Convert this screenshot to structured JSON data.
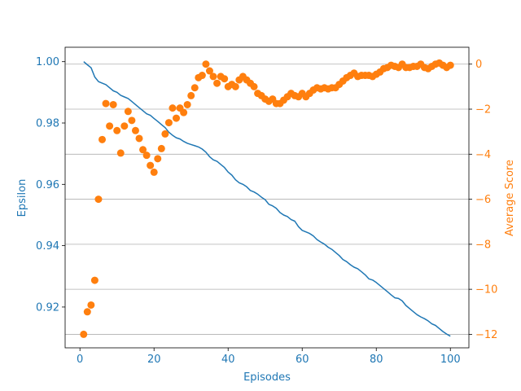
{
  "chart_data": {
    "type": "line",
    "title": "",
    "xlabel": "Episodes",
    "ylabel_left": "Epsilon",
    "ylabel_right": "Average Score",
    "xlim": [
      -4,
      105
    ],
    "ylim_left": [
      0.9067,
      1.0047
    ],
    "ylim_right": [
      -12.6,
      0.75
    ],
    "xticks": [
      0,
      20,
      40,
      60,
      80,
      100
    ],
    "yticks_left": [
      "0.92",
      "0.94",
      "0.96",
      "0.98",
      "1.00"
    ],
    "yticks_left_values": [
      0.92,
      0.94,
      0.96,
      0.98,
      1.0
    ],
    "yticks_right": [
      "−12",
      "−10",
      "−8",
      "−6",
      "−4",
      "−2",
      "0"
    ],
    "yticks_right_values": [
      -12,
      -10,
      -8,
      -6,
      -4,
      -2,
      0
    ],
    "grid": "horizontal, right axis",
    "colors": {
      "epsilon": "#1f77b4",
      "score": "#ff7f0e",
      "grid": "#b0b0b0",
      "axis": "#000000"
    },
    "series": [
      {
        "axis": "left",
        "style": "line",
        "x": [
          1,
          2,
          3,
          4,
          5,
          6,
          7,
          8,
          9,
          10,
          11,
          12,
          13,
          14,
          15,
          16,
          17,
          18,
          19,
          20,
          21,
          22,
          23,
          24,
          25,
          26,
          27,
          28,
          29,
          30,
          31,
          32,
          33,
          34,
          35,
          36,
          37,
          38,
          39,
          40,
          41,
          42,
          43,
          44,
          45,
          46,
          47,
          48,
          49,
          50,
          51,
          52,
          53,
          54,
          55,
          56,
          57,
          58,
          59,
          60,
          61,
          62,
          63,
          64,
          65,
          66,
          67,
          68,
          69,
          70,
          71,
          72,
          73,
          74,
          75,
          76,
          77,
          78,
          79,
          80,
          81,
          82,
          83,
          84,
          85,
          86,
          87,
          88,
          89,
          90,
          91,
          92,
          93,
          94,
          95,
          96,
          97,
          98,
          99,
          100
        ],
        "values": [
          1.0,
          0.999,
          0.998,
          0.995,
          0.9935,
          0.993,
          0.9925,
          0.9915,
          0.9905,
          0.99,
          0.989,
          0.9885,
          0.988,
          0.987,
          0.986,
          0.985,
          0.984,
          0.983,
          0.9825,
          0.9815,
          0.9805,
          0.9795,
          0.9785,
          0.977,
          0.976,
          0.9752,
          0.9748,
          0.974,
          0.9734,
          0.973,
          0.9726,
          0.9722,
          0.9715,
          0.9705,
          0.969,
          0.968,
          0.9675,
          0.9665,
          0.9655,
          0.964,
          0.963,
          0.9615,
          0.9605,
          0.96,
          0.9592,
          0.958,
          0.9575,
          0.9568,
          0.9558,
          0.955,
          0.9535,
          0.953,
          0.9522,
          0.9508,
          0.95,
          0.9495,
          0.9485,
          0.948,
          0.9462,
          0.945,
          0.9445,
          0.944,
          0.9432,
          0.942,
          0.9412,
          0.9405,
          0.9395,
          0.9388,
          0.9378,
          0.9368,
          0.9355,
          0.9348,
          0.9338,
          0.933,
          0.9325,
          0.9315,
          0.9305,
          0.9292,
          0.9288,
          0.928,
          0.927,
          0.926,
          0.925,
          0.924,
          0.923,
          0.9228,
          0.922,
          0.9205,
          0.9195,
          0.9185,
          0.9175,
          0.9168,
          0.9162,
          0.9155,
          0.9145,
          0.914,
          0.913,
          0.912,
          0.9112,
          0.9105
        ]
      },
      {
        "axis": "right",
        "style": "scatter",
        "x": [
          1,
          2,
          3,
          4,
          5,
          6,
          7,
          8,
          9,
          10,
          11,
          12,
          13,
          14,
          15,
          16,
          17,
          18,
          19,
          20,
          21,
          22,
          23,
          24,
          25,
          26,
          27,
          28,
          29,
          30,
          31,
          32,
          33,
          34,
          35,
          36,
          37,
          38,
          39,
          40,
          41,
          42,
          43,
          44,
          45,
          46,
          47,
          48,
          49,
          50,
          51,
          52,
          53,
          54,
          55,
          56,
          57,
          58,
          59,
          60,
          61,
          62,
          63,
          64,
          65,
          66,
          67,
          68,
          69,
          70,
          71,
          72,
          73,
          74,
          75,
          76,
          77,
          78,
          79,
          80,
          81,
          82,
          83,
          84,
          85,
          86,
          87,
          88,
          89,
          90,
          91,
          92,
          93,
          94,
          95,
          96,
          97,
          98,
          99,
          100
        ],
        "values": [
          -12.0,
          -11.0,
          -10.7,
          -9.6,
          -6.0,
          -3.35,
          -1.75,
          -2.75,
          -1.8,
          -2.95,
          -3.95,
          -2.75,
          -2.1,
          -2.5,
          -2.95,
          -3.3,
          -3.8,
          -4.05,
          -4.5,
          -4.8,
          -4.2,
          -3.75,
          -3.1,
          -2.6,
          -1.95,
          -2.4,
          -1.95,
          -2.15,
          -1.8,
          -1.4,
          -1.05,
          -0.6,
          -0.5,
          0.0,
          -0.3,
          -0.55,
          -0.85,
          -0.55,
          -0.65,
          -1.0,
          -0.9,
          -1.0,
          -0.7,
          -0.55,
          -0.7,
          -0.85,
          -1.0,
          -1.3,
          -1.4,
          -1.55,
          -1.65,
          -1.55,
          -1.75,
          -1.75,
          -1.6,
          -1.45,
          -1.3,
          -1.4,
          -1.45,
          -1.3,
          -1.45,
          -1.3,
          -1.15,
          -1.05,
          -1.1,
          -1.05,
          -1.1,
          -1.05,
          -1.05,
          -0.9,
          -0.75,
          -0.6,
          -0.5,
          -0.4,
          -0.55,
          -0.5,
          -0.5,
          -0.5,
          -0.55,
          -0.45,
          -0.35,
          -0.2,
          -0.15,
          -0.05,
          -0.1,
          -0.15,
          0.0,
          -0.15,
          -0.15,
          -0.1,
          -0.1,
          0.0,
          -0.15,
          -0.2,
          -0.1,
          0.0,
          0.05,
          -0.05,
          -0.15,
          -0.05
        ]
      }
    ]
  }
}
